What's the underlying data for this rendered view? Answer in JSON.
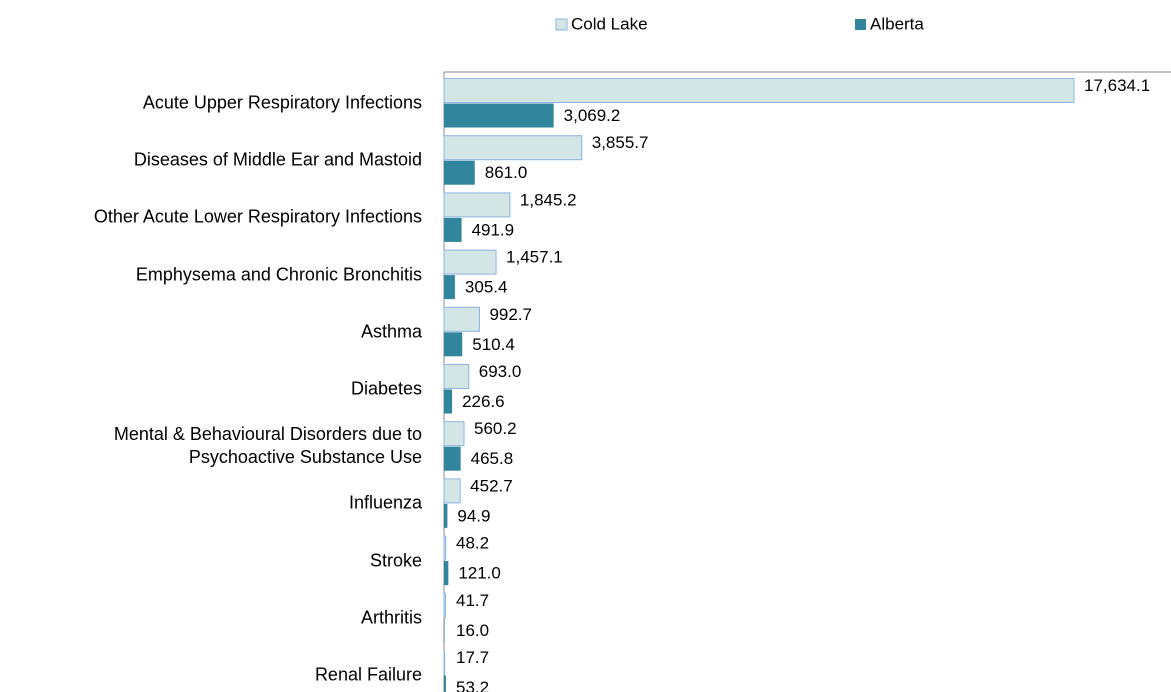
{
  "chart_data": {
    "type": "bar",
    "orientation": "horizontal",
    "categories": [
      "Acute Upper Respiratory Infections",
      "Diseases of Middle Ear and Mastoid",
      "Other Acute Lower Respiratory Infections",
      "Emphysema and Chronic Bronchitis",
      "Asthma",
      "Diabetes",
      "Mental & Behavioural Disorders due to Psychoactive Substance Use",
      "Influenza",
      "Stroke",
      "Arthritis",
      "Renal Failure"
    ],
    "series": [
      {
        "name": "Cold Lake",
        "color": "#d3e5e4",
        "edge_color": "#8db4e2",
        "values": [
          17634.1,
          3855.7,
          1845.2,
          1457.1,
          992.7,
          693.0,
          560.2,
          452.7,
          48.2,
          41.7,
          17.7
        ],
        "value_labels": [
          "17,634.1",
          "3,855.7",
          "1,845.2",
          "1,457.1",
          "992.7",
          "693.0",
          "560.2",
          "452.7",
          "48.2",
          "41.7",
          "17.7"
        ]
      },
      {
        "name": "Alberta",
        "color": "#31859c",
        "values": [
          3069.2,
          861.0,
          491.9,
          305.4,
          510.4,
          226.6,
          465.8,
          94.9,
          121.0,
          16.0,
          53.2
        ],
        "value_labels": [
          "3,069.2",
          "861.0",
          "491.9",
          "305.4",
          "510.4",
          "226.6",
          "465.8",
          "94.9",
          "121.0",
          "16.0",
          "53.2"
        ]
      }
    ],
    "legend": "top"
  }
}
